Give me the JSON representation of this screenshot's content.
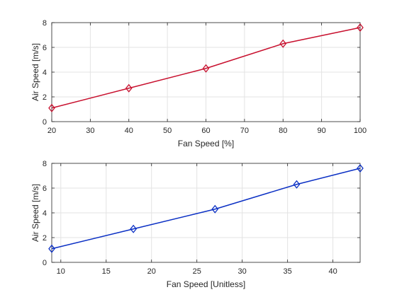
{
  "chart_data": [
    {
      "type": "line",
      "title": "",
      "xlabel": "Fan Speed [%]",
      "ylabel": "Air Speed [m/s]",
      "xlim": [
        20,
        100
      ],
      "ylim": [
        0,
        8
      ],
      "xticks": [
        20,
        30,
        40,
        50,
        60,
        70,
        80,
        90,
        100
      ],
      "yticks": [
        0,
        2,
        4,
        6,
        8
      ],
      "grid": true,
      "legend": "none",
      "series": [
        {
          "color": "#c8102e",
          "marker": "diamond",
          "x": [
            20,
            40,
            60,
            80,
            100
          ],
          "y": [
            1.1,
            2.7,
            4.3,
            6.3,
            7.6
          ]
        }
      ]
    },
    {
      "type": "line",
      "title": "",
      "xlabel": "Fan Speed [Unitless]",
      "ylabel": "Air Speed [m/s]",
      "xlim": [
        9,
        43
      ],
      "ylim": [
        0,
        8
      ],
      "xticks": [
        10,
        15,
        20,
        25,
        30,
        35,
        40
      ],
      "yticks": [
        0,
        2,
        4,
        6,
        8
      ],
      "grid": true,
      "legend": "none",
      "series": [
        {
          "color": "#0a2fc4",
          "marker": "diamond",
          "x": [
            9,
            18,
            27,
            36,
            43
          ],
          "y": [
            1.1,
            2.7,
            4.3,
            6.3,
            7.6
          ]
        }
      ]
    }
  ]
}
